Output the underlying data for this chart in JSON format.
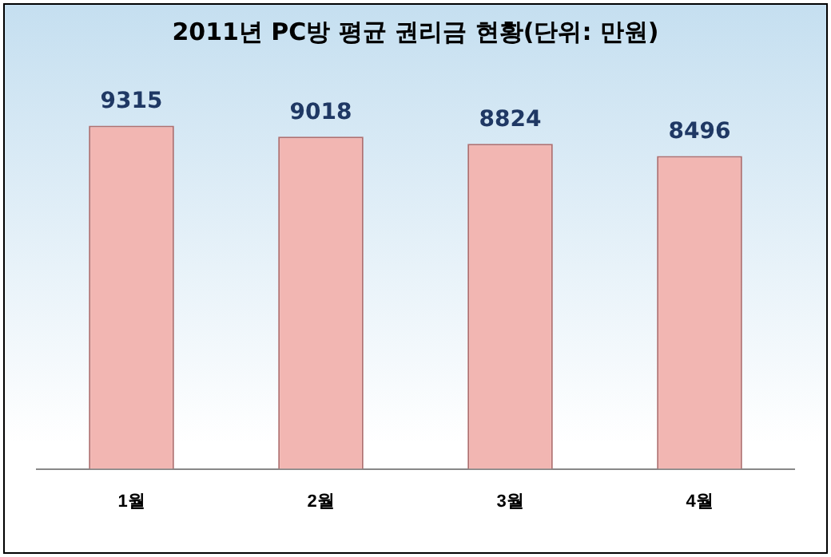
{
  "chart_data": {
    "type": "bar",
    "title": "2011년 PC방 평균 권리금 현황(단위: 만원)",
    "categories": [
      "1월",
      "2월",
      "3월",
      "4월"
    ],
    "values": [
      9315,
      9018,
      8824,
      8496
    ],
    "color": "#f2b6b2",
    "data_labels": true,
    "grid": false,
    "legend": false
  }
}
